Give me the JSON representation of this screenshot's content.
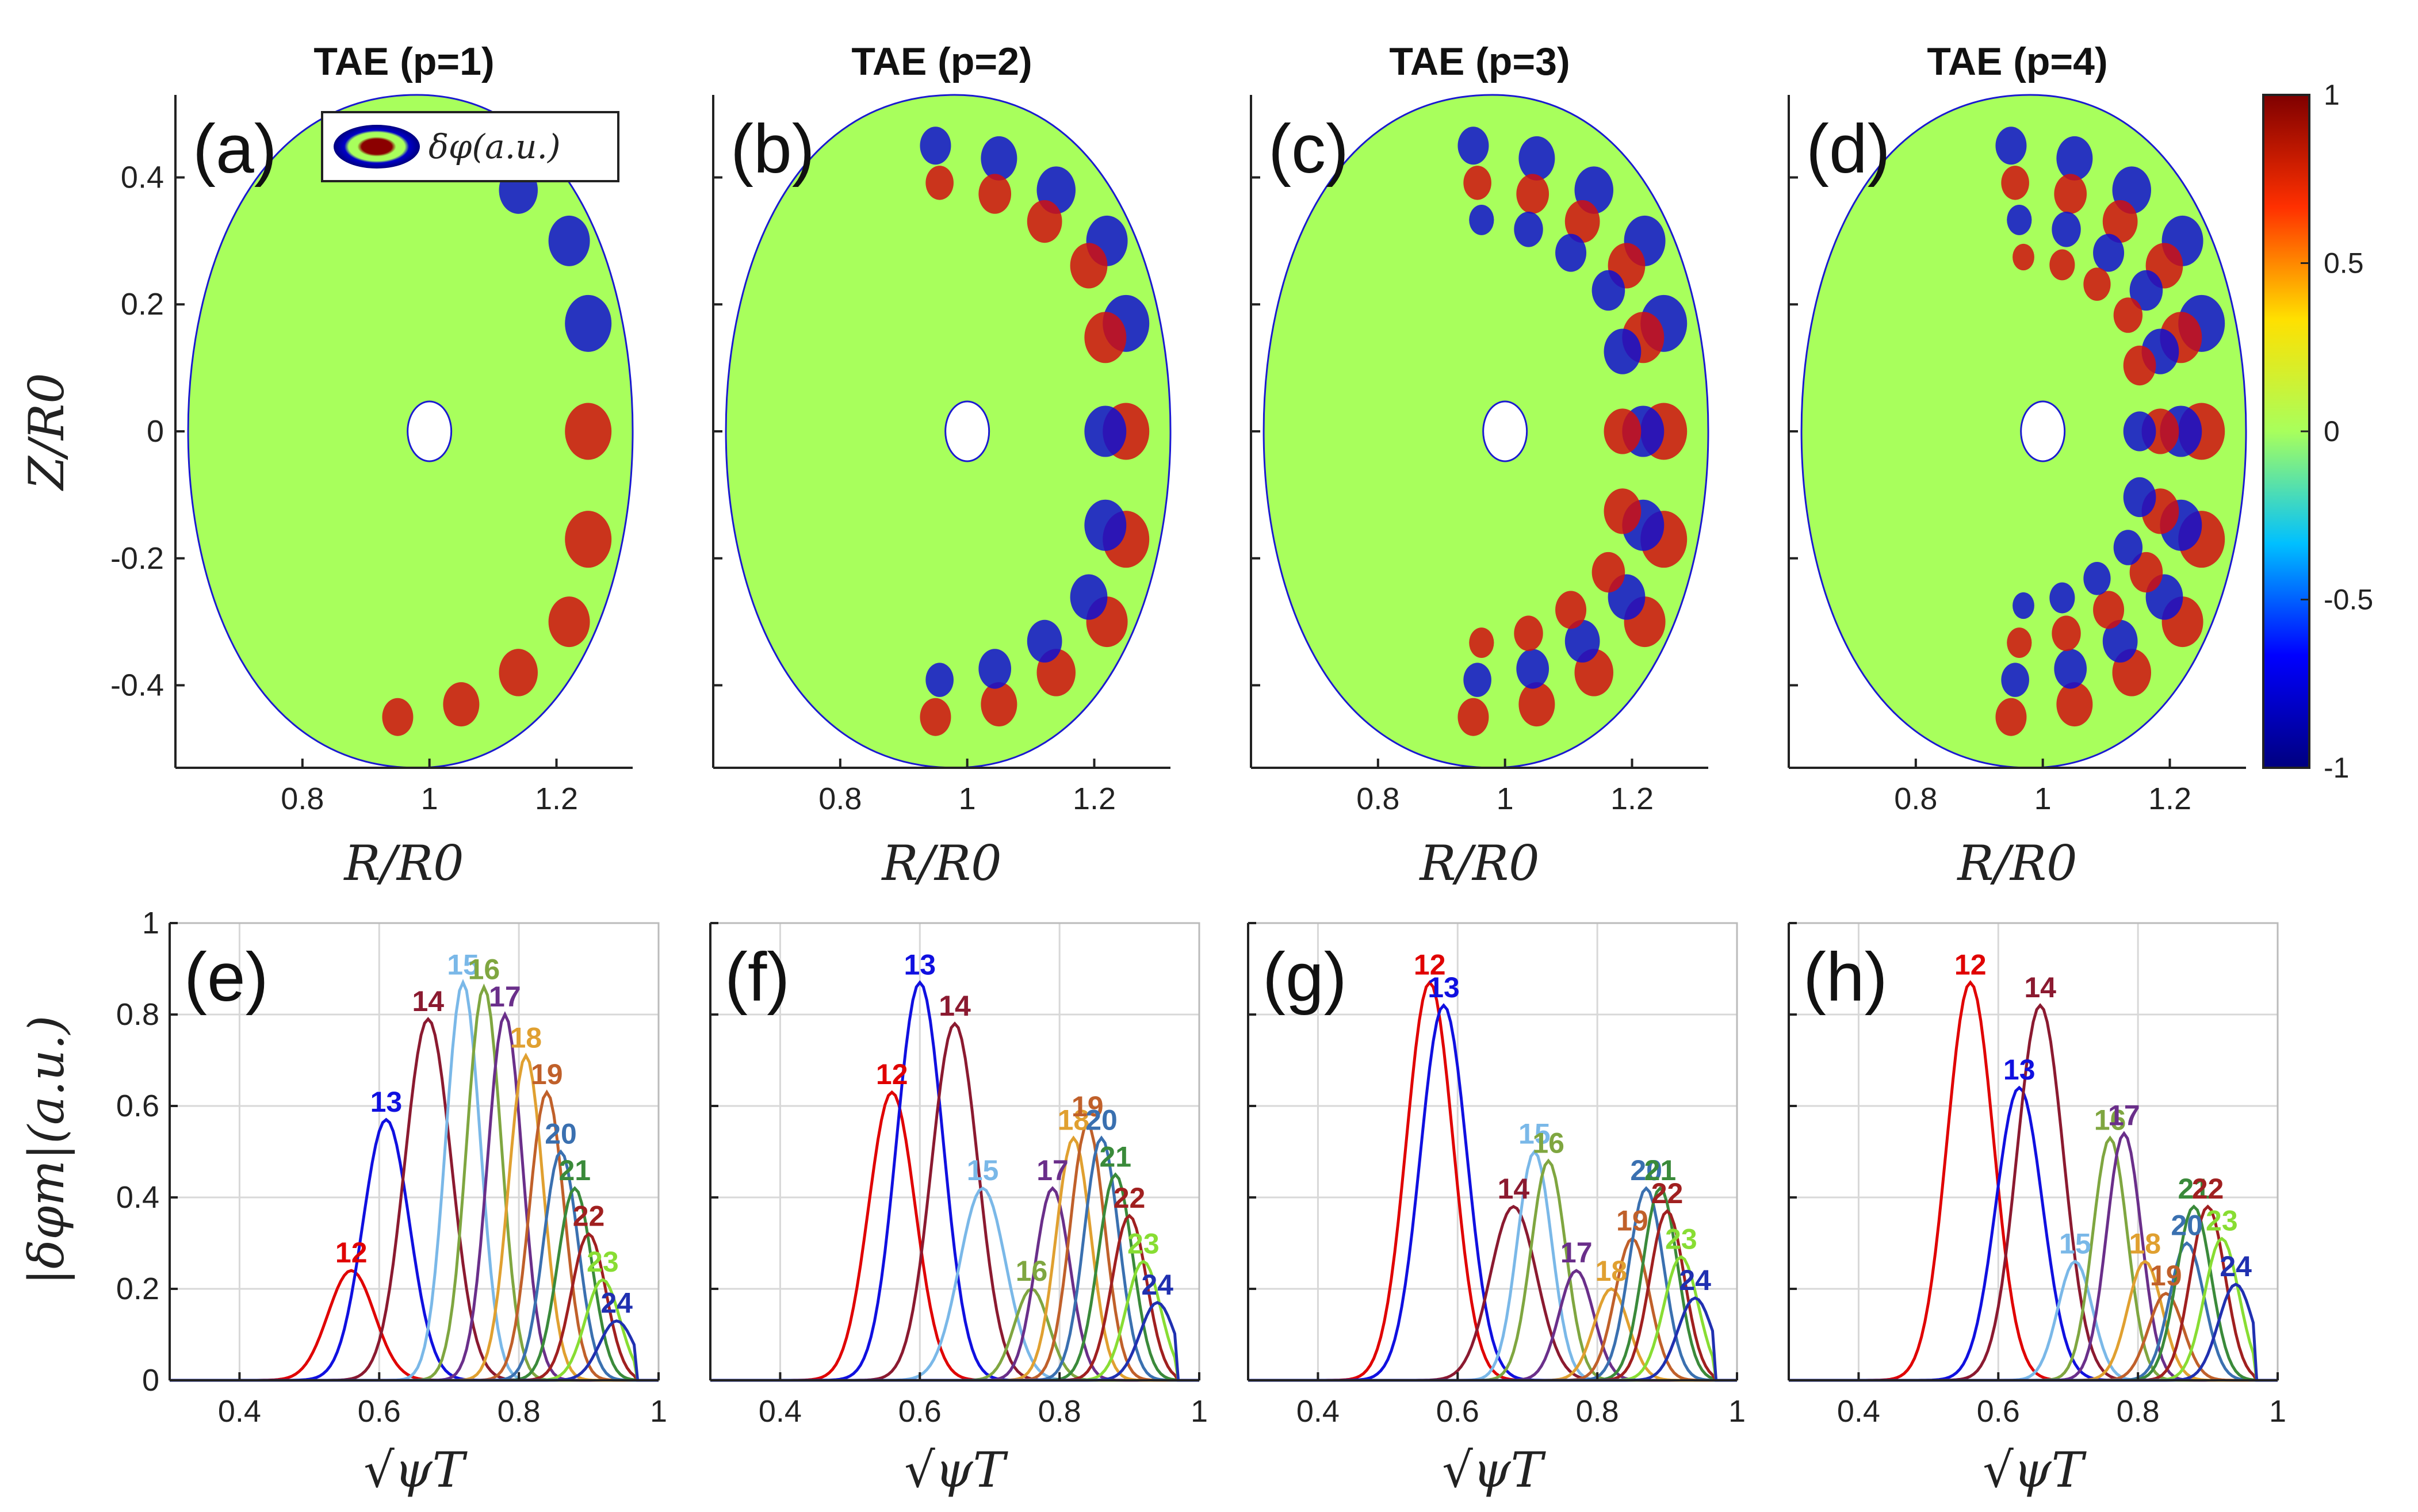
{
  "figure": {
    "contour_panels": [
      {
        "id": "a",
        "panel_label": "(a)",
        "title": "TAE (p=1)"
      },
      {
        "id": "b",
        "panel_label": "(b)",
        "title": "TAE (p=2)"
      },
      {
        "id": "c",
        "panel_label": "(c)",
        "title": "TAE (p=3)"
      },
      {
        "id": "d",
        "panel_label": "(d)",
        "title": "TAE (p=4)"
      }
    ],
    "contour_axes": {
      "xlabel": "R/R0",
      "ylabel": "Z/R0",
      "xticks": [
        "0.8",
        "1",
        "1.2"
      ],
      "yticks": [
        "0.4",
        "0.2",
        "0",
        "-0.2",
        "-0.4"
      ],
      "legend": "δφ(a.u.)"
    },
    "colorbar": {
      "ticks": [
        "1",
        "0.5",
        "0",
        "-0.5",
        "-1"
      ],
      "stops": [
        "#00007f",
        "#0000ff",
        "#00c0ff",
        "#a8ff5c",
        "#ffe000",
        "#ff3000",
        "#7f0000"
      ]
    },
    "profile_axes": {
      "xlabel": "√ψT",
      "ylabel": "|δφm|(a.u.)",
      "xticks": [
        "0.4",
        "0.6",
        "0.8",
        "1"
      ],
      "yticks": [
        "1",
        "0.8",
        "0.6",
        "0.4",
        "0.2",
        "0"
      ]
    },
    "mode_colors": {
      "12": "#e00000",
      "13": "#1010e0",
      "14": "#8b1a30",
      "15": "#7ab8e8",
      "16": "#7fa640",
      "17": "#6a2f8a",
      "18": "#e0a030",
      "19": "#c0602a",
      "20": "#3a70b0",
      "21": "#3a8a3a",
      "22": "#a02020",
      "23": "#88dd33",
      "24": "#2030b0"
    }
  },
  "chart_data": [
    {
      "type": "heatmap",
      "panel": "(a)",
      "title": "TAE (p=1)",
      "xlabel": "R/R0",
      "ylabel": "Z/R0",
      "xlim": [
        0.6,
        1.32
      ],
      "ylim": [
        -0.53,
        0.53
      ],
      "clim": [
        -1,
        1
      ],
      "colorbar": "δφ(a.u.)"
    },
    {
      "type": "heatmap",
      "panel": "(b)",
      "title": "TAE (p=2)",
      "xlabel": "R/R0",
      "ylabel": "Z/R0",
      "xlim": [
        0.6,
        1.32
      ],
      "ylim": [
        -0.53,
        0.53
      ],
      "clim": [
        -1,
        1
      ]
    },
    {
      "type": "heatmap",
      "panel": "(c)",
      "title": "TAE (p=3)",
      "xlabel": "R/R0",
      "ylabel": "Z/R0",
      "xlim": [
        0.6,
        1.32
      ],
      "ylim": [
        -0.53,
        0.53
      ],
      "clim": [
        -1,
        1
      ]
    },
    {
      "type": "heatmap",
      "panel": "(d)",
      "title": "TAE (p=4)",
      "xlabel": "R/R0",
      "ylabel": "Z/R0",
      "xlim": [
        0.6,
        1.32
      ],
      "ylim": [
        -0.53,
        0.53
      ],
      "clim": [
        -1,
        1
      ]
    },
    {
      "type": "line",
      "panel": "(e)",
      "xlabel": "√ψT",
      "ylabel": "|δφm|(a.u.)",
      "xlim": [
        0.3,
        1.0
      ],
      "ylim": [
        0,
        1
      ],
      "series": [
        {
          "name": "12",
          "peak_x": 0.56,
          "peak_y": 0.24
        },
        {
          "name": "13",
          "peak_x": 0.61,
          "peak_y": 0.57
        },
        {
          "name": "14",
          "peak_x": 0.67,
          "peak_y": 0.79
        },
        {
          "name": "15",
          "peak_x": 0.72,
          "peak_y": 0.87
        },
        {
          "name": "16",
          "peak_x": 0.75,
          "peak_y": 0.86
        },
        {
          "name": "17",
          "peak_x": 0.78,
          "peak_y": 0.8
        },
        {
          "name": "18",
          "peak_x": 0.81,
          "peak_y": 0.71
        },
        {
          "name": "19",
          "peak_x": 0.84,
          "peak_y": 0.63
        },
        {
          "name": "20",
          "peak_x": 0.86,
          "peak_y": 0.5
        },
        {
          "name": "21",
          "peak_x": 0.88,
          "peak_y": 0.42
        },
        {
          "name": "22",
          "peak_x": 0.9,
          "peak_y": 0.32
        },
        {
          "name": "23",
          "peak_x": 0.92,
          "peak_y": 0.22
        },
        {
          "name": "24",
          "peak_x": 0.94,
          "peak_y": 0.13
        }
      ]
    },
    {
      "type": "line",
      "panel": "(f)",
      "xlabel": "√ψT",
      "ylabel": "|δφm|(a.u.)",
      "xlim": [
        0.3,
        1.0
      ],
      "ylim": [
        0,
        1
      ],
      "series": [
        {
          "name": "12",
          "peak_x": 0.56,
          "peak_y": 0.63
        },
        {
          "name": "13",
          "peak_x": 0.6,
          "peak_y": 0.87
        },
        {
          "name": "14",
          "peak_x": 0.65,
          "peak_y": 0.78
        },
        {
          "name": "15",
          "peak_x": 0.69,
          "peak_y": 0.42
        },
        {
          "name": "16",
          "peak_x": 0.76,
          "peak_y": 0.2
        },
        {
          "name": "17",
          "peak_x": 0.79,
          "peak_y": 0.42
        },
        {
          "name": "18",
          "peak_x": 0.82,
          "peak_y": 0.53
        },
        {
          "name": "19",
          "peak_x": 0.84,
          "peak_y": 0.56
        },
        {
          "name": "20",
          "peak_x": 0.86,
          "peak_y": 0.53
        },
        {
          "name": "21",
          "peak_x": 0.88,
          "peak_y": 0.45
        },
        {
          "name": "22",
          "peak_x": 0.9,
          "peak_y": 0.36
        },
        {
          "name": "23",
          "peak_x": 0.92,
          "peak_y": 0.26
        },
        {
          "name": "24",
          "peak_x": 0.94,
          "peak_y": 0.17
        }
      ]
    },
    {
      "type": "line",
      "panel": "(g)",
      "xlabel": "√ψT",
      "ylabel": "|δφm|(a.u.)",
      "xlim": [
        0.3,
        1.0
      ],
      "ylim": [
        0,
        1
      ],
      "series": [
        {
          "name": "12",
          "peak_x": 0.56,
          "peak_y": 0.87
        },
        {
          "name": "13",
          "peak_x": 0.58,
          "peak_y": 0.82
        },
        {
          "name": "14",
          "peak_x": 0.68,
          "peak_y": 0.38
        },
        {
          "name": "15",
          "peak_x": 0.71,
          "peak_y": 0.5
        },
        {
          "name": "16",
          "peak_x": 0.73,
          "peak_y": 0.48
        },
        {
          "name": "17",
          "peak_x": 0.77,
          "peak_y": 0.24
        },
        {
          "name": "18",
          "peak_x": 0.82,
          "peak_y": 0.2
        },
        {
          "name": "19",
          "peak_x": 0.85,
          "peak_y": 0.31
        },
        {
          "name": "20",
          "peak_x": 0.87,
          "peak_y": 0.42
        },
        {
          "name": "21",
          "peak_x": 0.89,
          "peak_y": 0.42
        },
        {
          "name": "22",
          "peak_x": 0.9,
          "peak_y": 0.37
        },
        {
          "name": "23",
          "peak_x": 0.92,
          "peak_y": 0.27
        },
        {
          "name": "24",
          "peak_x": 0.94,
          "peak_y": 0.18
        }
      ]
    },
    {
      "type": "line",
      "panel": "(h)",
      "xlabel": "√ψT",
      "ylabel": "|δφm|(a.u.)",
      "xlim": [
        0.3,
        1.0
      ],
      "ylim": [
        0,
        1
      ],
      "series": [
        {
          "name": "12",
          "peak_x": 0.56,
          "peak_y": 0.87
        },
        {
          "name": "13",
          "peak_x": 0.63,
          "peak_y": 0.64
        },
        {
          "name": "14",
          "peak_x": 0.66,
          "peak_y": 0.82
        },
        {
          "name": "15",
          "peak_x": 0.71,
          "peak_y": 0.26
        },
        {
          "name": "16",
          "peak_x": 0.76,
          "peak_y": 0.53
        },
        {
          "name": "17",
          "peak_x": 0.78,
          "peak_y": 0.54
        },
        {
          "name": "18",
          "peak_x": 0.81,
          "peak_y": 0.26
        },
        {
          "name": "19",
          "peak_x": 0.84,
          "peak_y": 0.19
        },
        {
          "name": "20",
          "peak_x": 0.87,
          "peak_y": 0.3
        },
        {
          "name": "21",
          "peak_x": 0.88,
          "peak_y": 0.38
        },
        {
          "name": "22",
          "peak_x": 0.9,
          "peak_y": 0.38
        },
        {
          "name": "23",
          "peak_x": 0.92,
          "peak_y": 0.31
        },
        {
          "name": "24",
          "peak_x": 0.94,
          "peak_y": 0.21
        }
      ]
    }
  ]
}
